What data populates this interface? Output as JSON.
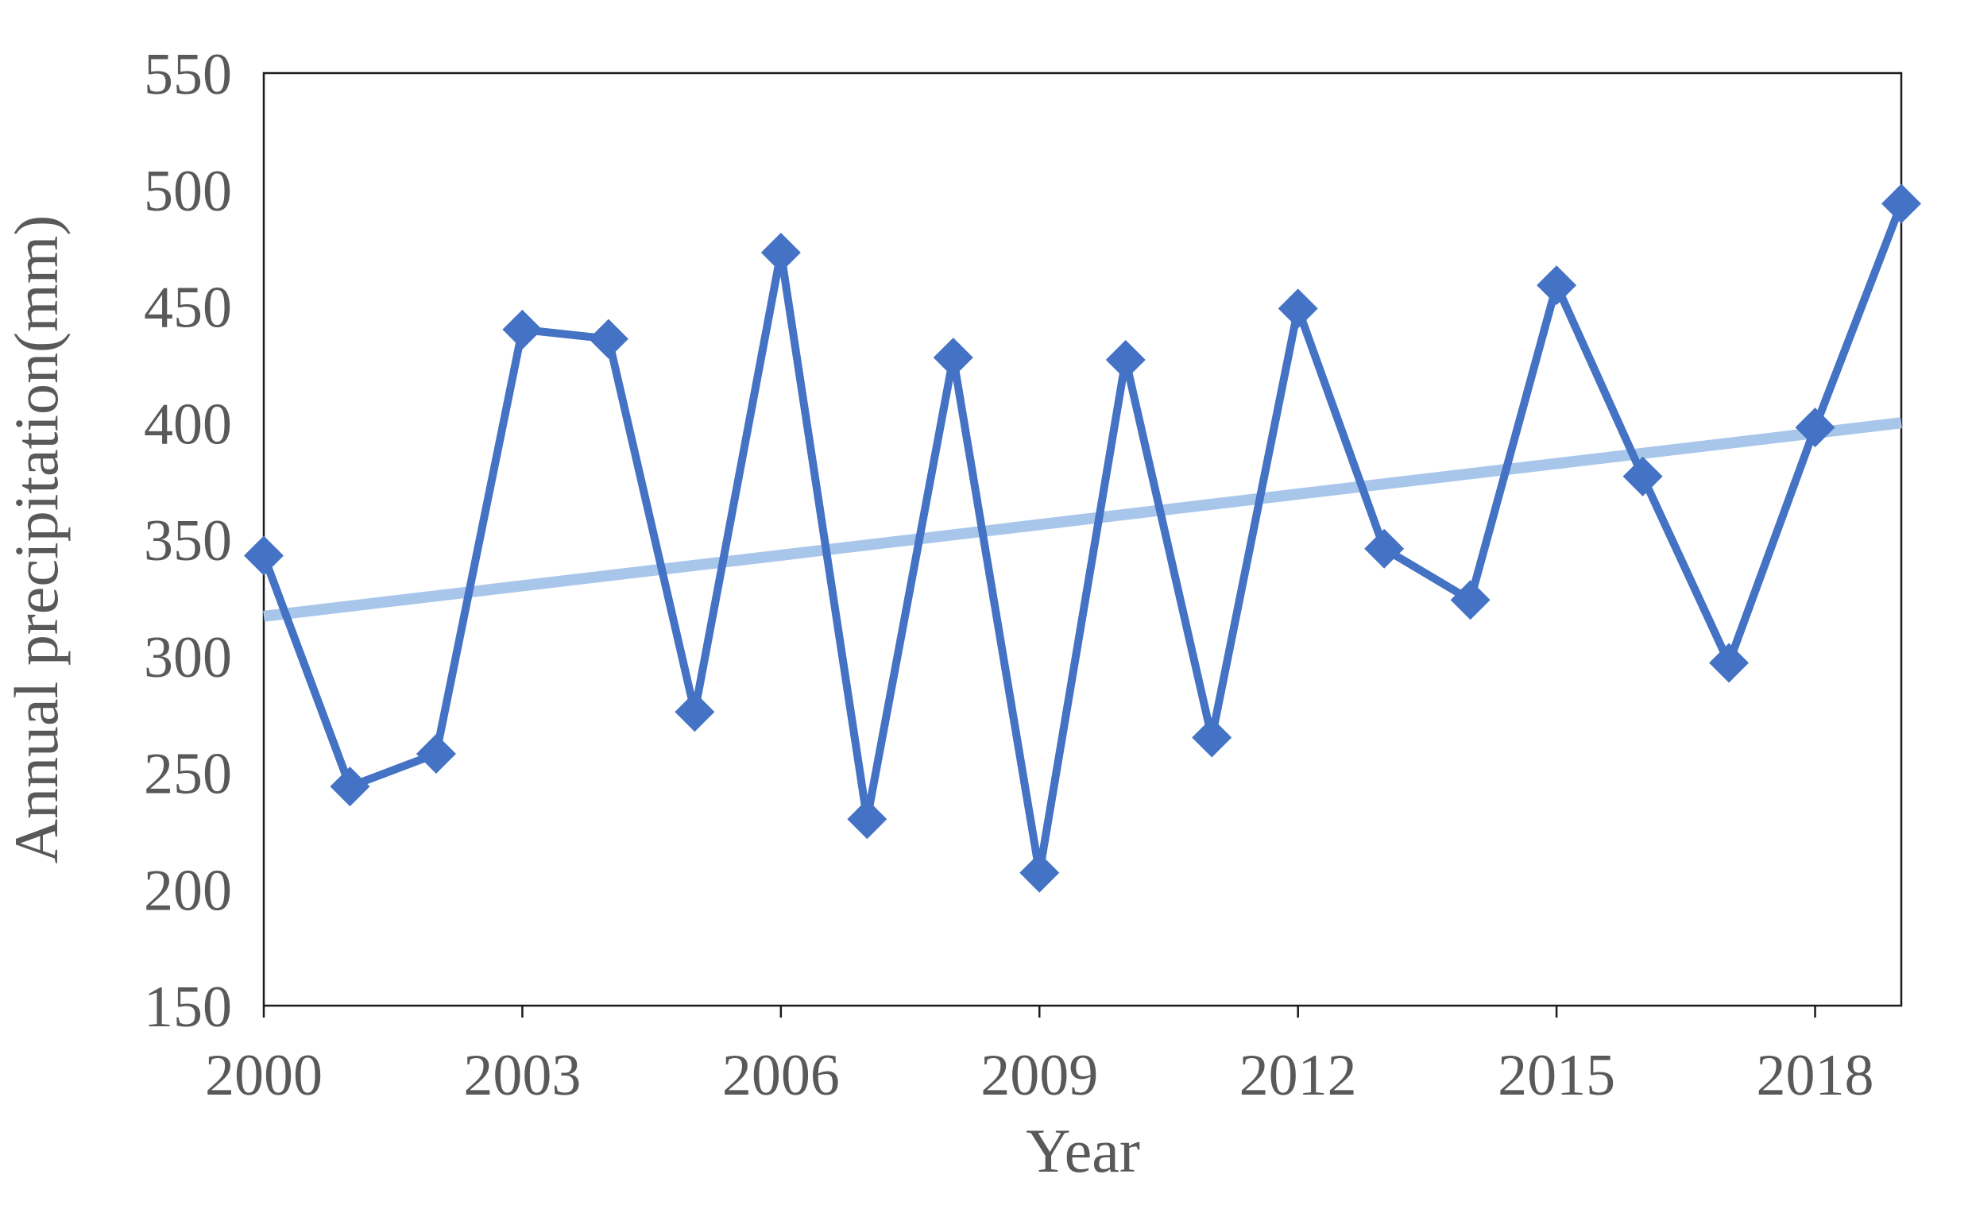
{
  "chart_data": {
    "type": "line",
    "title": "",
    "xlabel": "Year",
    "ylabel": "Annual precipitation(mm)",
    "x": [
      2000,
      2001,
      2002,
      2003,
      2004,
      2005,
      2006,
      2007,
      2008,
      2009,
      2010,
      2011,
      2012,
      2013,
      2014,
      2015,
      2016,
      2017,
      2018,
      2019
    ],
    "series": [
      {
        "name": "Annual precipitation",
        "values": [
          343,
          244,
          258,
          440,
          436,
          276,
          473,
          230,
          428,
          207,
          427,
          265,
          449,
          346,
          324,
          459,
          377,
          297,
          398,
          494
        ],
        "color": "#4472C4",
        "marker": "diamond"
      }
    ],
    "trendline": {
      "start_year": 2000,
      "start_value": 317,
      "end_year": 2019,
      "end_value": 400,
      "color": "#A8C6EA"
    },
    "x_ticks": [
      2000,
      2003,
      2006,
      2009,
      2012,
      2015,
      2018
    ],
    "y_ticks": [
      150,
      200,
      250,
      300,
      350,
      400,
      450,
      500,
      550
    ],
    "xlim": [
      2000,
      2019
    ],
    "ylim": [
      150,
      550
    ],
    "grid": false,
    "legend": false,
    "axis_color": "#1a1a1a",
    "label_color": "#595959"
  }
}
